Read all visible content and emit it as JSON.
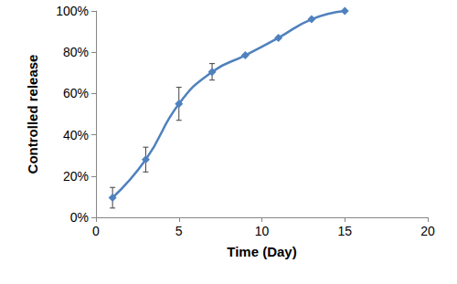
{
  "chart_data": {
    "type": "line",
    "x_label": "Time (Day)",
    "y_label": "Controlled release",
    "x": [
      1,
      3,
      5,
      7,
      9,
      11,
      13,
      15
    ],
    "values": [
      9.5,
      28,
      55,
      70.5,
      78.5,
      87,
      96,
      100
    ],
    "errors": [
      5,
      6,
      8,
      4,
      null,
      null,
      null,
      null
    ],
    "color": "#4f81bd",
    "marker": "diamond",
    "xlim": [
      0,
      20
    ],
    "xticks": [
      0,
      5,
      10,
      15,
      20
    ],
    "ylim": [
      0,
      100
    ],
    "yticks": [
      {
        "value": 0,
        "label": "0%"
      },
      {
        "value": 20,
        "label": "20%"
      },
      {
        "value": 40,
        "label": "40%"
      },
      {
        "value": 60,
        "label": "60%"
      },
      {
        "value": 80,
        "label": "80%"
      },
      {
        "value": 100,
        "label": "100%"
      }
    ],
    "grid": false
  }
}
